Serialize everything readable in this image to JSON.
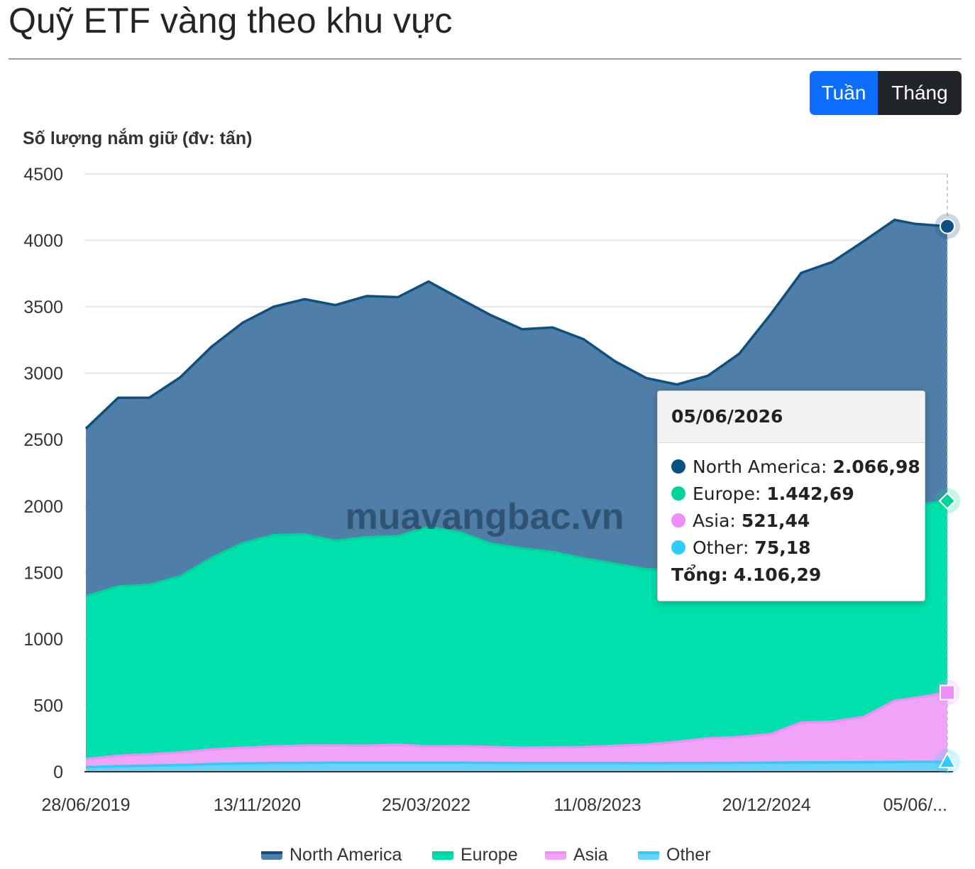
{
  "page": {
    "title": "Quỹ ETF vàng theo khu vực"
  },
  "toggle": {
    "week_label": "Tuần",
    "month_label": "Tháng",
    "active": "week"
  },
  "watermark": "muavangbac.vn",
  "tooltip": {
    "date": "05/06/2026",
    "rows": [
      {
        "name": "North America",
        "value": "2.066,98",
        "color": "#075380"
      },
      {
        "name": "Europe",
        "value": "1.442,69",
        "color": "#00d49a"
      },
      {
        "name": "Asia",
        "value": "521,44",
        "color": "#ee8ef8"
      },
      {
        "name": "Other",
        "value": "75,18",
        "color": "#2ccdfb"
      }
    ],
    "total_label": "Tổng",
    "total_value": "4.106,29"
  },
  "chart_data": {
    "type": "area",
    "stacked": true,
    "ylabel": "Số lượng nắm giữ (đv: tấn)",
    "ylim": [
      0,
      4500
    ],
    "yticks": [
      0,
      500,
      1000,
      1500,
      2000,
      2500,
      3000,
      3500,
      4000,
      4500
    ],
    "xlim": [
      "2019-06-28",
      "2026-06-05"
    ],
    "xticks": [
      {
        "date": "2019-06-28",
        "label": "28/06/2019"
      },
      {
        "date": "2020-11-13",
        "label": "13/11/2020"
      },
      {
        "date": "2022-03-25",
        "label": "25/03/2022"
      },
      {
        "date": "2023-08-11",
        "label": "11/08/2023"
      },
      {
        "date": "2024-12-20",
        "label": "20/12/2024"
      },
      {
        "date": "2026-06-05",
        "label": "05/06/..."
      }
    ],
    "grid": true,
    "legend_position": "bottom",
    "x": [
      "2019-06-28",
      "2019-10-01",
      "2020-01-01",
      "2020-04-01",
      "2020-07-01",
      "2020-10-01",
      "2021-01-01",
      "2021-04-01",
      "2021-07-01",
      "2021-10-01",
      "2022-01-01",
      "2022-04-01",
      "2022-07-01",
      "2022-10-01",
      "2023-01-01",
      "2023-04-01",
      "2023-07-01",
      "2023-10-01",
      "2024-01-01",
      "2024-04-01",
      "2024-07-01",
      "2024-10-01",
      "2025-01-01",
      "2025-04-01",
      "2025-07-01",
      "2025-10-01",
      "2026-01-01",
      "2026-03-01",
      "2026-06-05"
    ],
    "series": [
      {
        "name": "North America",
        "color": "#4f7fa8",
        "line_color": "#0f4f80",
        "values": [
          1263,
          1420,
          1410,
          1500,
          1590,
          1660,
          1720,
          1770,
          1775,
          1815,
          1800,
          1850,
          1760,
          1720,
          1650,
          1690,
          1650,
          1525,
          1440,
          1400,
          1460,
          1595,
          1860,
          2025,
          2090,
          2180,
          2180,
          2120,
          2067
        ]
      },
      {
        "name": "Europe",
        "color": "#00e0ac",
        "line_color": "#00d49a",
        "values": [
          1225,
          1275,
          1275,
          1325,
          1440,
          1540,
          1590,
          1590,
          1540,
          1570,
          1570,
          1650,
          1610,
          1530,
          1500,
          1470,
          1420,
          1370,
          1320,
          1290,
          1270,
          1290,
          1300,
          1360,
          1370,
          1400,
          1440,
          1450,
          1443
        ]
      },
      {
        "name": "Asia",
        "color": "#f0a4f8",
        "line_color": "#ee8ef8",
        "values": [
          60,
          78,
          85,
          95,
          110,
          118,
          125,
          130,
          130,
          128,
          135,
          122,
          125,
          120,
          115,
          118,
          120,
          130,
          140,
          160,
          185,
          195,
          215,
          300,
          305,
          340,
          460,
          480,
          521
        ]
      },
      {
        "name": "Other",
        "color": "#6ad2f7",
        "line_color": "#2ccdfb",
        "values": [
          35,
          42,
          46,
          50,
          58,
          62,
          66,
          67,
          68,
          68,
          68,
          68,
          68,
          67,
          66,
          66,
          66,
          65,
          64,
          65,
          66,
          67,
          68,
          70,
          71,
          72,
          74,
          75,
          75
        ]
      }
    ]
  }
}
